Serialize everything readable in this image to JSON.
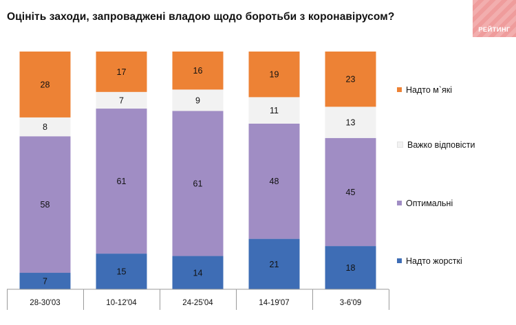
{
  "header": {
    "title": "Оцініть заходи, запроваджені владою щодо боротьби з коронавірусом?",
    "brand": "РЕЙТИНГ"
  },
  "colors": {
    "too_soft": "#ed8235",
    "hard_to_say": "#f2f2f2",
    "optimal": "#a08dc4",
    "too_strict": "#3e6db5"
  },
  "chart_data": {
    "type": "bar",
    "stacked": true,
    "categories": [
      "28-30'03",
      "10-12'04",
      "24-25'04",
      "14-19'07",
      "3-6'09"
    ],
    "series": [
      {
        "name": "Надто жорсткі",
        "color": "#3e6db5",
        "values": [
          7,
          15,
          14,
          21,
          18
        ]
      },
      {
        "name": "Оптимальні",
        "color": "#a08dc4",
        "values": [
          58,
          61,
          61,
          48,
          45
        ]
      },
      {
        "name": "Важко відповісти",
        "color": "#f2f2f2",
        "values": [
          8,
          7,
          9,
          11,
          13
        ]
      },
      {
        "name": "Надто м`які",
        "color": "#ed8235",
        "values": [
          28,
          17,
          16,
          19,
          23
        ]
      }
    ],
    "ylim": [
      0,
      100
    ],
    "legend_position": "right",
    "grid": false
  }
}
